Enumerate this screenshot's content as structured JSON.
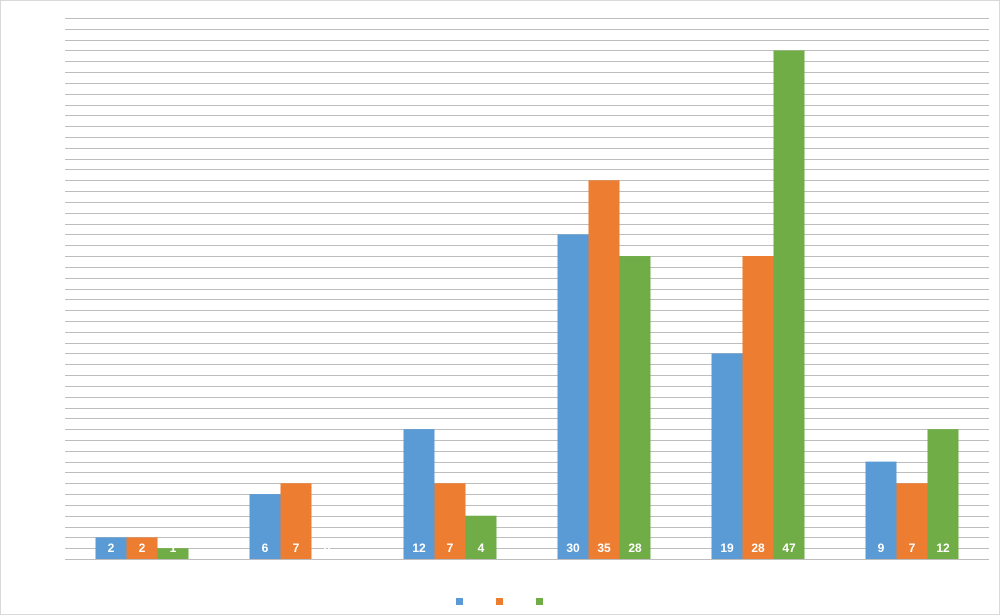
{
  "chart_data": {
    "type": "bar",
    "categories": [
      null,
      null,
      null,
      null,
      null,
      null
    ],
    "series": [
      {
        "color": "#5b9bd5",
        "values": [
          2,
          6,
          12,
          30,
          19,
          9
        ]
      },
      {
        "color": "#ed7d31",
        "values": [
          2,
          7,
          7,
          35,
          28,
          7
        ]
      },
      {
        "color": "#70ad47",
        "values": [
          1,
          0,
          4,
          28,
          47,
          12
        ]
      }
    ],
    "ylim": [
      0,
      50
    ],
    "yticks": [
      0,
      1,
      2,
      3,
      4,
      5,
      6,
      7,
      8,
      9,
      10,
      11,
      12,
      13,
      14,
      15,
      16,
      17,
      18,
      19,
      20,
      21,
      22,
      23,
      24,
      25,
      26,
      27,
      28,
      29,
      30,
      31,
      32,
      33,
      34,
      35,
      36,
      37,
      38,
      39,
      40,
      41,
      42,
      43,
      44,
      45,
      46,
      47,
      48,
      49,
      50
    ],
    "grid": true,
    "data_labels": true,
    "legend": "bottom"
  }
}
